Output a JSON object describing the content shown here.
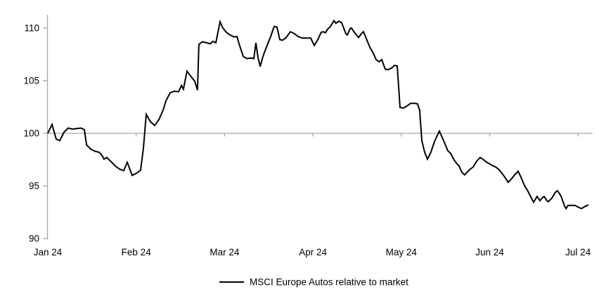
{
  "chart_style": {
    "background": "#FFFFFF",
    "axis_color": "#A6A6A6",
    "text_color": "#000000",
    "series_color": "#000000"
  },
  "chart_data": {
    "type": "line",
    "title": "",
    "xlabel": "",
    "ylabel": "",
    "legend_position": "bottom-center",
    "grid": "single horizontal baseline at y=100",
    "y_axis": {
      "min": 90,
      "max": 110,
      "tick_step": 5,
      "ticks": [
        110,
        105,
        100,
        95,
        90
      ],
      "baseline": 100
    },
    "x_axis": {
      "tick_labels": [
        "Jan 24",
        "Feb 24",
        "Mar 24",
        "Apr 24",
        "May 24",
        "Jun 24",
        "Jul 24"
      ],
      "unit": "months since Jan 2024"
    },
    "series": [
      {
        "name": "MSCI Europe Autos relative to market",
        "color": "#000000",
        "points": [
          [
            0.0,
            100.0
          ],
          [
            0.048,
            100.85
          ],
          [
            0.095,
            99.45
          ],
          [
            0.135,
            99.3
          ],
          [
            0.183,
            100.1
          ],
          [
            0.231,
            100.5
          ],
          [
            0.278,
            100.4
          ],
          [
            0.326,
            100.45
          ],
          [
            0.374,
            100.5
          ],
          [
            0.414,
            100.35
          ],
          [
            0.438,
            98.9
          ],
          [
            0.485,
            98.5
          ],
          [
            0.533,
            98.3
          ],
          [
            0.581,
            98.2
          ],
          [
            0.613,
            97.9
          ],
          [
            0.636,
            97.55
          ],
          [
            0.668,
            97.7
          ],
          [
            0.716,
            97.3
          ],
          [
            0.764,
            96.9
          ],
          [
            0.811,
            96.6
          ],
          [
            0.859,
            96.45
          ],
          [
            0.899,
            97.25
          ],
          [
            0.955,
            96.0
          ],
          [
            1.002,
            96.2
          ],
          [
            1.05,
            96.5
          ],
          [
            1.082,
            98.6
          ],
          [
            1.114,
            101.8
          ],
          [
            1.161,
            101.1
          ],
          [
            1.209,
            100.75
          ],
          [
            1.257,
            101.3
          ],
          [
            1.305,
            102.2
          ],
          [
            1.337,
            103.1
          ],
          [
            1.384,
            103.85
          ],
          [
            1.432,
            104.0
          ],
          [
            1.48,
            103.95
          ],
          [
            1.512,
            104.55
          ],
          [
            1.535,
            104.2
          ],
          [
            1.575,
            105.9
          ],
          [
            1.615,
            105.45
          ],
          [
            1.663,
            104.95
          ],
          [
            1.694,
            104.1
          ],
          [
            1.71,
            108.45
          ],
          [
            1.75,
            108.7
          ],
          [
            1.798,
            108.6
          ],
          [
            1.838,
            108.5
          ],
          [
            1.869,
            108.75
          ],
          [
            1.901,
            108.6
          ],
          [
            1.949,
            110.6
          ],
          [
            1.981,
            110.0
          ],
          [
            2.021,
            109.6
          ],
          [
            2.061,
            109.35
          ],
          [
            2.108,
            109.15
          ],
          [
            2.14,
            109.2
          ],
          [
            2.172,
            108.3
          ],
          [
            2.212,
            107.3
          ],
          [
            2.251,
            107.1
          ],
          [
            2.299,
            107.15
          ],
          [
            2.331,
            107.1
          ],
          [
            2.355,
            108.6
          ],
          [
            2.379,
            107.2
          ],
          [
            2.403,
            106.35
          ],
          [
            2.434,
            107.3
          ],
          [
            2.474,
            108.2
          ],
          [
            2.522,
            109.2
          ],
          [
            2.562,
            110.15
          ],
          [
            2.593,
            110.1
          ],
          [
            2.625,
            108.9
          ],
          [
            2.657,
            108.85
          ],
          [
            2.697,
            109.1
          ],
          [
            2.745,
            109.65
          ],
          [
            2.784,
            109.5
          ],
          [
            2.832,
            109.2
          ],
          [
            2.88,
            109.05
          ],
          [
            2.927,
            109.05
          ],
          [
            2.975,
            109.05
          ],
          [
            3.015,
            108.35
          ],
          [
            3.055,
            108.9
          ],
          [
            3.094,
            109.6
          ],
          [
            3.118,
            109.65
          ],
          [
            3.142,
            109.55
          ],
          [
            3.166,
            109.9
          ],
          [
            3.198,
            110.15
          ],
          [
            3.238,
            110.7
          ],
          [
            3.261,
            110.45
          ],
          [
            3.293,
            110.65
          ],
          [
            3.325,
            110.5
          ],
          [
            3.373,
            109.45
          ],
          [
            3.389,
            109.35
          ],
          [
            3.421,
            109.95
          ],
          [
            3.437,
            110.0
          ],
          [
            3.468,
            109.6
          ],
          [
            3.516,
            109.1
          ],
          [
            3.548,
            109.45
          ],
          [
            3.572,
            109.65
          ],
          [
            3.604,
            109.0
          ],
          [
            3.643,
            108.2
          ],
          [
            3.683,
            107.6
          ],
          [
            3.715,
            107.0
          ],
          [
            3.747,
            106.8
          ],
          [
            3.779,
            107.0
          ],
          [
            3.818,
            106.1
          ],
          [
            3.85,
            106.05
          ],
          [
            3.89,
            106.2
          ],
          [
            3.922,
            106.45
          ],
          [
            3.954,
            106.4
          ],
          [
            3.986,
            102.45
          ],
          [
            4.025,
            102.4
          ],
          [
            4.065,
            102.6
          ],
          [
            4.105,
            102.85
          ],
          [
            4.153,
            102.85
          ],
          [
            4.184,
            102.8
          ],
          [
            4.208,
            102.2
          ],
          [
            4.232,
            99.3
          ],
          [
            4.264,
            98.2
          ],
          [
            4.296,
            97.55
          ],
          [
            4.335,
            98.2
          ],
          [
            4.375,
            99.2
          ],
          [
            4.407,
            99.8
          ],
          [
            4.431,
            100.2
          ],
          [
            4.463,
            99.6
          ],
          [
            4.494,
            99.0
          ],
          [
            4.526,
            98.35
          ],
          [
            4.558,
            98.1
          ],
          [
            4.598,
            97.45
          ],
          [
            4.63,
            97.1
          ],
          [
            4.653,
            96.9
          ],
          [
            4.685,
            96.3
          ],
          [
            4.717,
            96.05
          ],
          [
            4.749,
            96.35
          ],
          [
            4.781,
            96.6
          ],
          [
            4.813,
            96.8
          ],
          [
            4.852,
            97.35
          ],
          [
            4.892,
            97.7
          ],
          [
            4.924,
            97.55
          ],
          [
            4.956,
            97.3
          ],
          [
            4.988,
            97.15
          ],
          [
            5.027,
            96.95
          ],
          [
            5.067,
            96.8
          ],
          [
            5.107,
            96.55
          ],
          [
            5.139,
            96.2
          ],
          [
            5.17,
            95.85
          ],
          [
            5.21,
            95.35
          ],
          [
            5.25,
            95.7
          ],
          [
            5.282,
            96.05
          ],
          [
            5.322,
            96.4
          ],
          [
            5.353,
            95.85
          ],
          [
            5.393,
            95.05
          ],
          [
            5.433,
            94.5
          ],
          [
            5.481,
            93.7
          ],
          [
            5.497,
            93.45
          ],
          [
            5.536,
            94.0
          ],
          [
            5.568,
            93.6
          ],
          [
            5.6,
            93.9
          ],
          [
            5.616,
            94.0
          ],
          [
            5.648,
            93.6
          ],
          [
            5.664,
            93.5
          ],
          [
            5.704,
            93.85
          ],
          [
            5.744,
            94.4
          ],
          [
            5.768,
            94.55
          ],
          [
            5.807,
            94.05
          ],
          [
            5.847,
            93.1
          ],
          [
            5.863,
            92.85
          ],
          [
            5.887,
            93.15
          ],
          [
            5.927,
            93.15
          ],
          [
            5.966,
            93.15
          ],
          [
            5.998,
            93.0
          ],
          [
            6.038,
            92.85
          ],
          [
            6.078,
            93.05
          ],
          [
            6.117,
            93.2
          ]
        ]
      }
    ]
  }
}
